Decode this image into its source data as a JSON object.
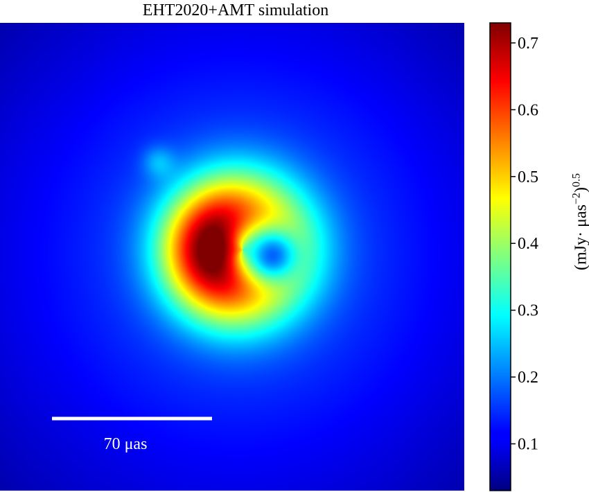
{
  "chart_data": {
    "type": "heatmap",
    "title": "EHT2020+AMT simulation",
    "colormap": "jet",
    "colorbar": {
      "label_prefix": "(mJy· μas",
      "label_exponent_inner": "−2",
      "label_close": ")",
      "label_exponent_outer": "0.5",
      "ticks": [
        0.1,
        0.2,
        0.3,
        0.4,
        0.5,
        0.6,
        0.7
      ],
      "tick_labels": [
        "0.1",
        "0.2",
        "0.3",
        "0.4",
        "0.5",
        "0.6",
        "0.7"
      ],
      "range": [
        0.03,
        0.73
      ]
    },
    "scale_bar": {
      "label": "70 μas"
    },
    "features": {
      "ring_peak_value": 0.72,
      "ring_mean_value": 0.45,
      "center_hole_value": 0.17,
      "background_value": 0.12
    }
  }
}
